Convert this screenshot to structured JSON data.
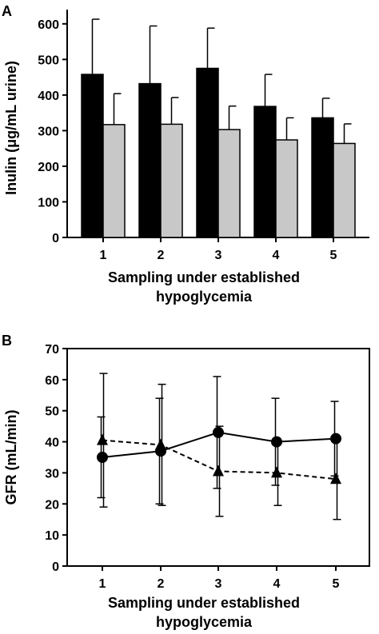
{
  "chart_data": [
    {
      "panel": "A",
      "type": "bar",
      "categories": [
        "1",
        "2",
        "3",
        "4",
        "5"
      ],
      "series": [
        {
          "values": [
            458,
            432,
            475,
            368,
            336
          ],
          "errors": [
            155,
            162,
            113,
            90,
            55
          ],
          "color": "#000000"
        },
        {
          "values": [
            317,
            318,
            303,
            274,
            264
          ],
          "errors": [
            87,
            75,
            66,
            62,
            55
          ],
          "color": "#c8c8c8"
        }
      ],
      "xlabel_lines": [
        "Sampling under established",
        "hypoglycemia"
      ],
      "ylabel": "Inulin (μg/mL urine)",
      "ylim": [
        0,
        640
      ],
      "yticks": [
        0,
        100,
        200,
        300,
        400,
        500,
        600
      ]
    },
    {
      "panel": "B",
      "type": "line",
      "x": [
        "1",
        "2",
        "3",
        "4",
        "5"
      ],
      "series": [
        {
          "marker": "circle",
          "line": "solid",
          "values": [
            35,
            37,
            43,
            40,
            41
          ],
          "errors": [
            13,
            17,
            18,
            14,
            12
          ]
        },
        {
          "marker": "triangle",
          "line": "dashed",
          "values": [
            40.5,
            39,
            30.5,
            30,
            28
          ],
          "errors": [
            21.5,
            19.5,
            14.5,
            10.5,
            13
          ]
        }
      ],
      "xlabel_lines": [
        "Sampling under established",
        "hypoglycemia"
      ],
      "ylabel": "GFR (mL/min)",
      "ylim": [
        0,
        70
      ],
      "yticks": [
        0,
        10,
        20,
        30,
        40,
        50,
        60,
        70
      ]
    }
  ]
}
